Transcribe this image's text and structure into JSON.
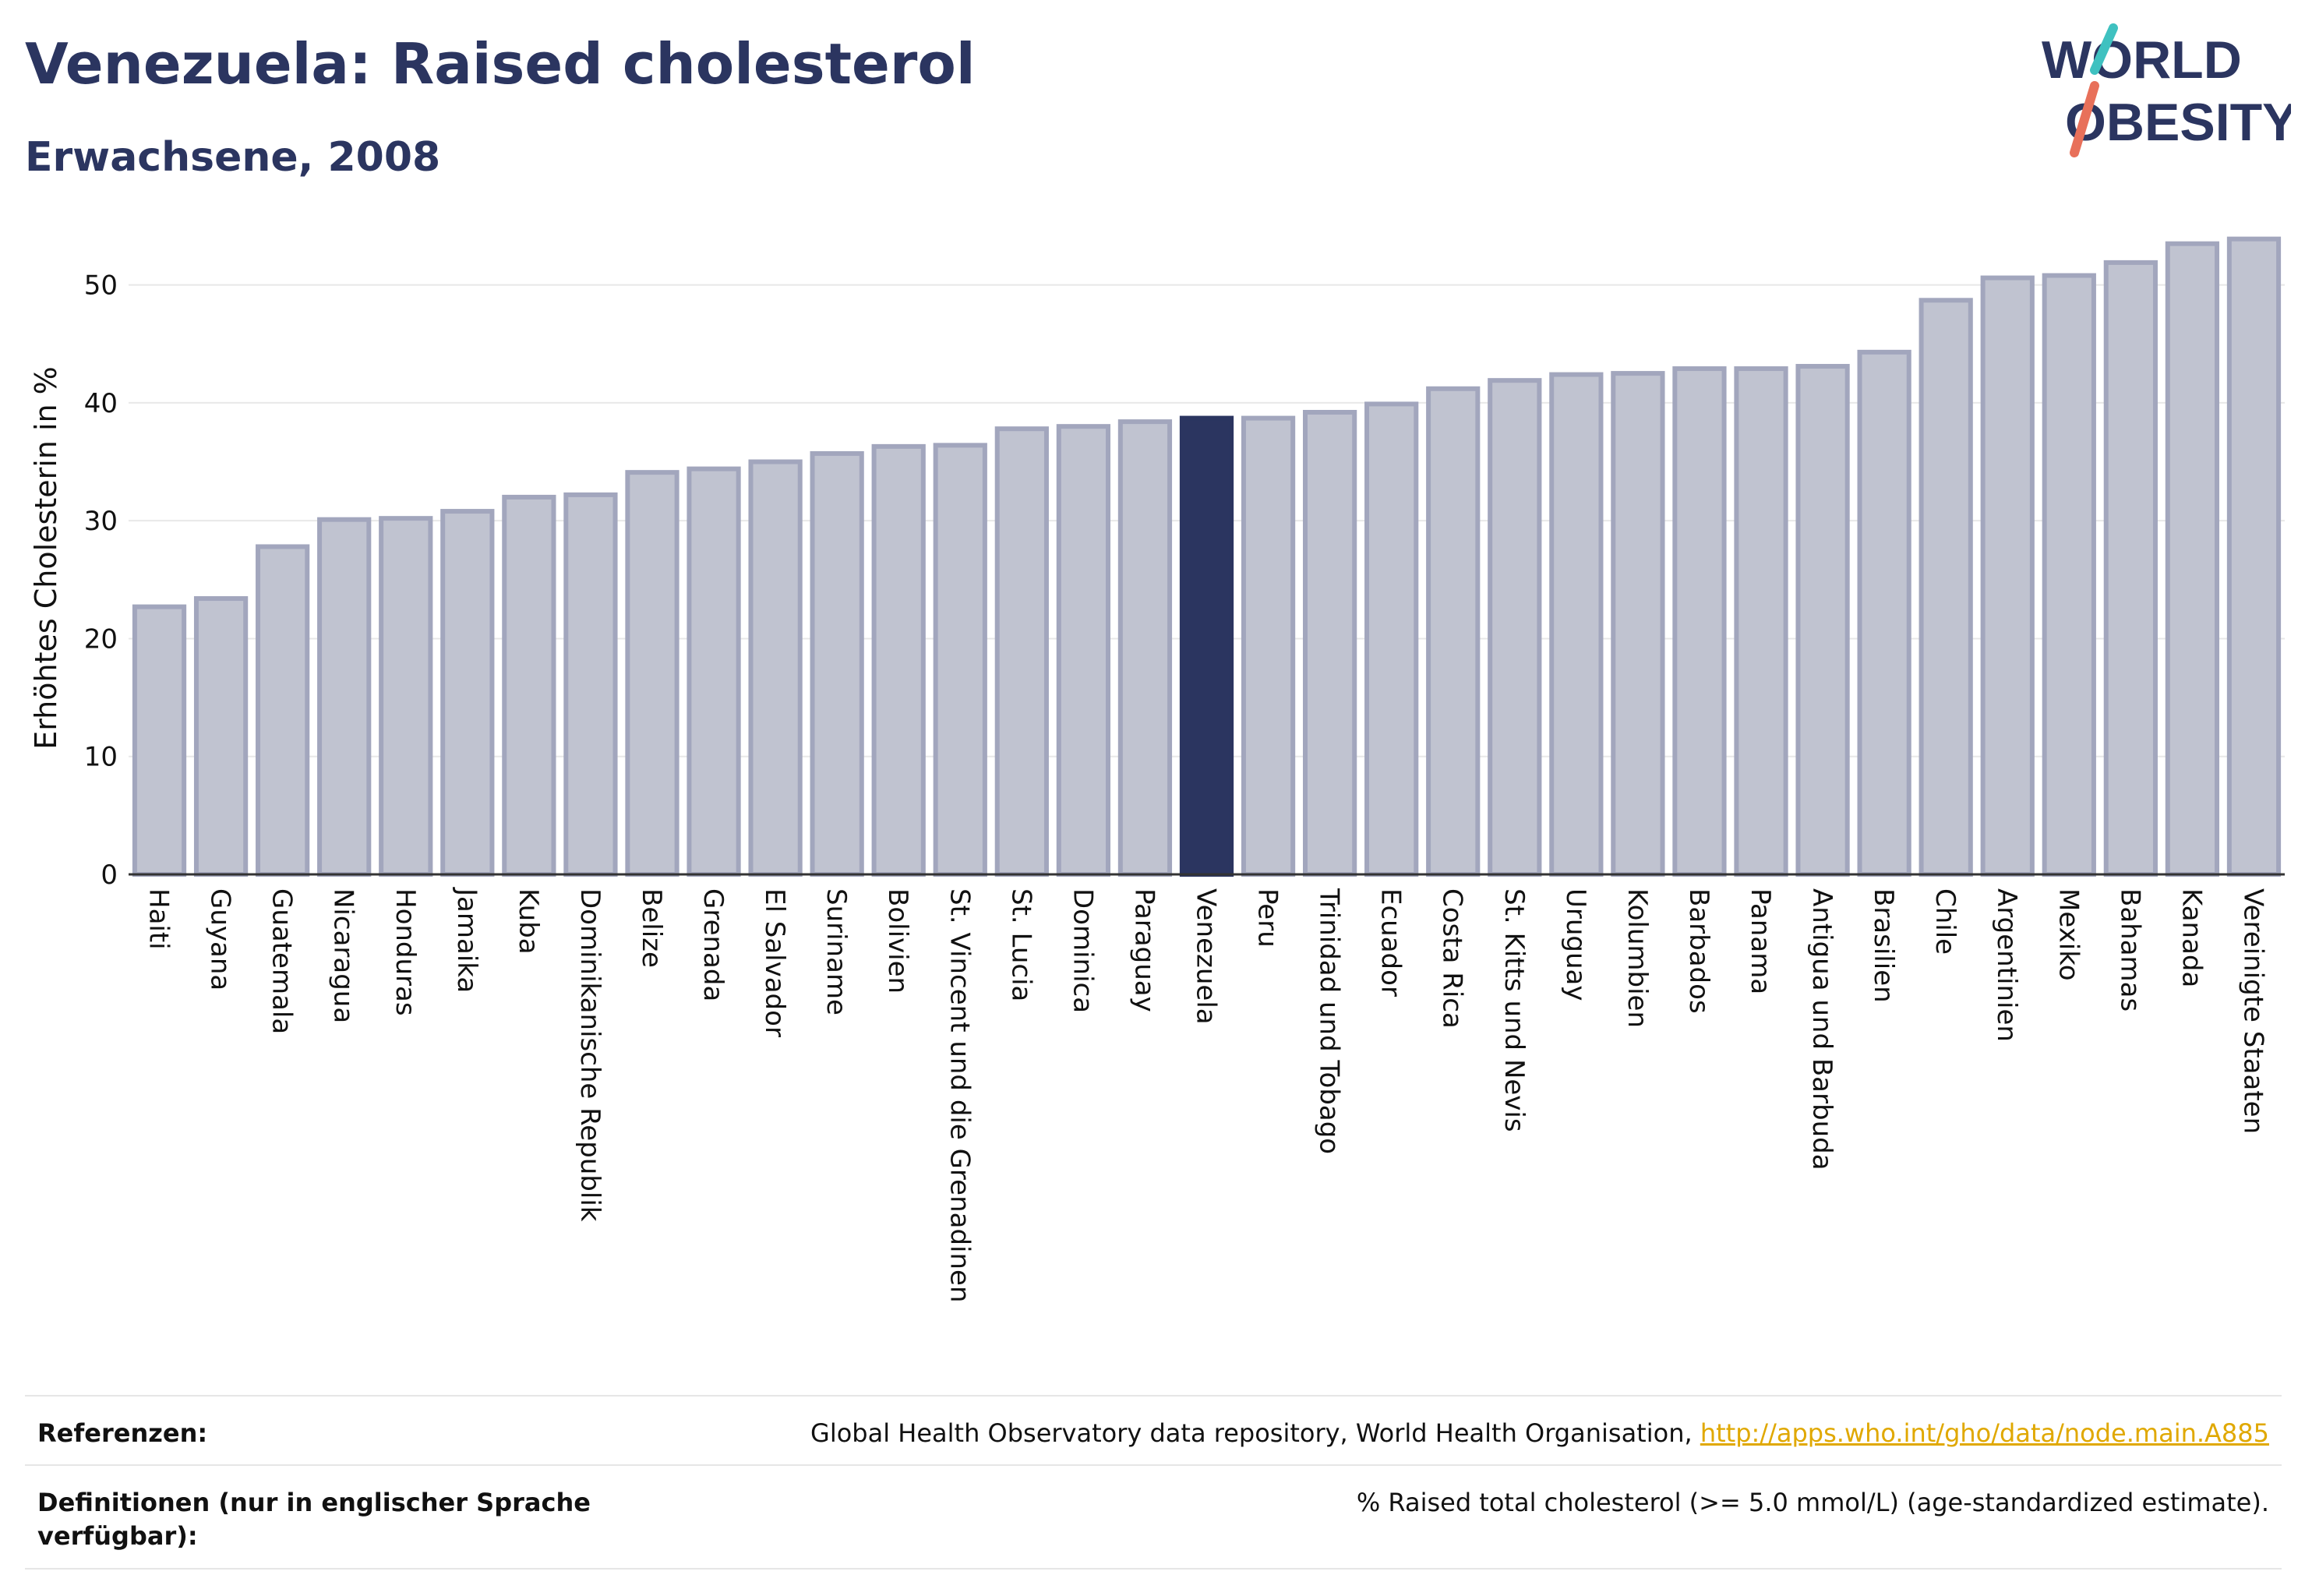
{
  "header": {
    "title": "Venezuela: Raised cholesterol",
    "subtitle": "Erwachsene, 2008"
  },
  "logo": {
    "line1": "WORLD",
    "line2": "OBESITY"
  },
  "colors": {
    "highlight": "#2b3560",
    "bar": "#c0c3d0",
    "bar_border": "#a2a6bd",
    "accent_teal": "#3fc1c0",
    "accent_red": "#e8705a"
  },
  "chart_data": {
    "type": "bar",
    "ylabel": "Erhöhtes Cholesterin in %",
    "ylim": [
      0,
      55
    ],
    "yticks": [
      0,
      10,
      20,
      30,
      40,
      50
    ],
    "grid": true,
    "highlight": "Venezuela",
    "categories": [
      "Haiti",
      "Guyana",
      "Guatemala",
      "Nicaragua",
      "Honduras",
      "Jamaika",
      "Kuba",
      "Dominikanische Republik",
      "Belize",
      "Grenada",
      "El Salvador",
      "Suriname",
      "Bolivien",
      "St. Vincent und die Grenadinen",
      "St. Lucia",
      "Dominica",
      "Paraguay",
      "Venezuela",
      "Peru",
      "Trinidad und Tobago",
      "Ecuador",
      "Costa Rica",
      "St. Kitts und Nevis",
      "Uruguay",
      "Kolumbien",
      "Barbados",
      "Panama",
      "Antigua und Barbuda",
      "Brasilien",
      "Chile",
      "Argentinien",
      "Mexiko",
      "Bahamas",
      "Kanada",
      "Vereinigte Staaten"
    ],
    "values": [
      22.7,
      23.4,
      27.8,
      30.1,
      30.2,
      30.8,
      32.0,
      32.2,
      34.1,
      34.4,
      35.0,
      35.7,
      36.3,
      36.4,
      37.8,
      38.0,
      38.4,
      38.7,
      38.7,
      39.2,
      39.9,
      41.2,
      41.9,
      42.4,
      42.5,
      42.9,
      42.9,
      43.1,
      44.3,
      48.7,
      50.6,
      50.8,
      51.9,
      53.5,
      53.9
    ]
  },
  "footer": {
    "references_label": "Referenzen:",
    "references_text": "Global Health Observatory data repository, World Health Organisation, ",
    "references_link": "http://apps.who.int/gho/data/node.main.A885",
    "definitions_label": "Definitionen (nur in englischer Sprache verfügbar):",
    "definitions_text": "% Raised total cholesterol (>= 5.0 mmol/L) (age-standardized estimate)."
  }
}
